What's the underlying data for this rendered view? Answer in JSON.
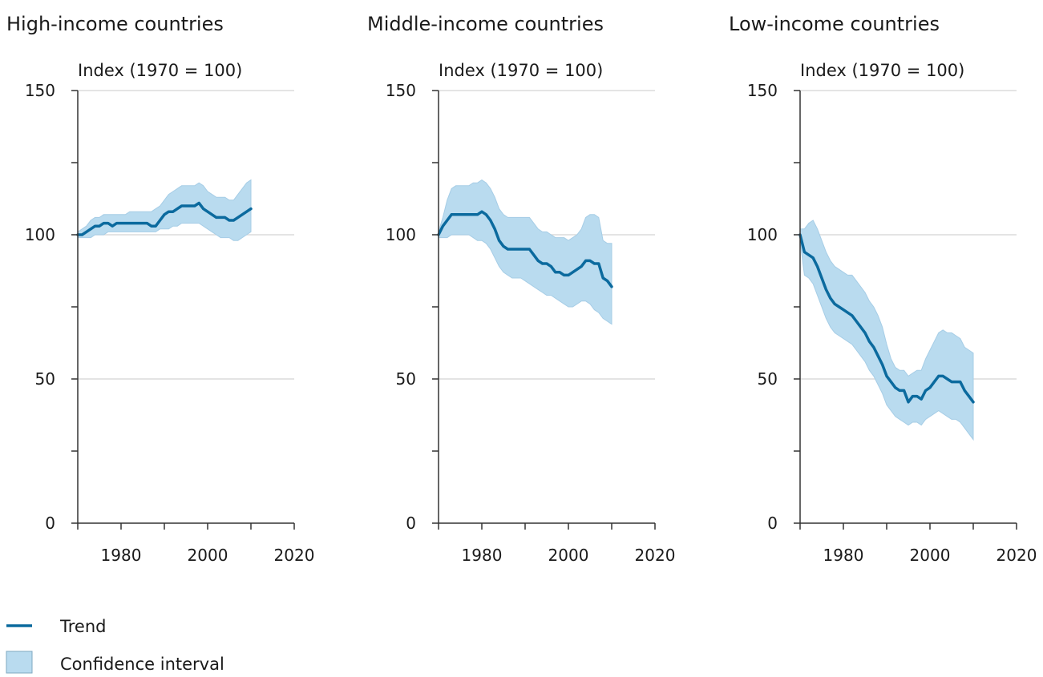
{
  "colors": {
    "trend": "#0b6a9e",
    "ci_fill": "#b9dbef",
    "ci_stroke": "#a6cde6"
  },
  "legend": {
    "trend_label": "Trend",
    "ci_label": "Confidence interval"
  },
  "chart_data": [
    {
      "type": "line",
      "title": "High-income countries",
      "ylabel": "Index (1970 = 100)",
      "xlim": [
        1970,
        2020
      ],
      "ylim": [
        0,
        150
      ],
      "xticks": [
        1980,
        2000,
        2020
      ],
      "yticks": [
        0,
        50,
        100,
        150
      ],
      "grid": "horizontal",
      "series": [
        {
          "name": "Trend",
          "x": [
            1970,
            1971,
            1972,
            1973,
            1974,
            1975,
            1976,
            1977,
            1978,
            1979,
            1980,
            1981,
            1982,
            1983,
            1984,
            1985,
            1986,
            1987,
            1988,
            1989,
            1990,
            1991,
            1992,
            1993,
            1994,
            1995,
            1996,
            1997,
            1998,
            1999,
            2000,
            2001,
            2002,
            2003,
            2004,
            2005,
            2006,
            2007,
            2008,
            2009,
            2010
          ],
          "y": [
            100,
            100,
            101,
            102,
            103,
            103,
            104,
            104,
            103,
            104,
            104,
            104,
            104,
            104,
            104,
            104,
            104,
            103,
            103,
            105,
            107,
            108,
            108,
            109,
            110,
            110,
            110,
            110,
            111,
            109,
            108,
            107,
            106,
            106,
            106,
            105,
            105,
            106,
            107,
            108,
            109
          ]
        },
        {
          "name": "Confidence interval",
          "x": [
            1970,
            1971,
            1972,
            1973,
            1974,
            1975,
            1976,
            1977,
            1978,
            1979,
            1980,
            1981,
            1982,
            1983,
            1984,
            1985,
            1986,
            1987,
            1988,
            1989,
            1990,
            1991,
            1992,
            1993,
            1994,
            1995,
            1996,
            1997,
            1998,
            1999,
            2000,
            2001,
            2002,
            2003,
            2004,
            2005,
            2006,
            2007,
            2008,
            2009,
            2010
          ],
          "lower": [
            99,
            99,
            99,
            99,
            100,
            100,
            100,
            101,
            101,
            101,
            101,
            101,
            101,
            101,
            101,
            101,
            101,
            101,
            101,
            102,
            102,
            102,
            103,
            103,
            104,
            104,
            104,
            104,
            104,
            103,
            102,
            101,
            100,
            99,
            99,
            99,
            98,
            98,
            99,
            100,
            101
          ],
          "upper": [
            101,
            102,
            103,
            105,
            106,
            106,
            107,
            107,
            107,
            107,
            107,
            107,
            108,
            108,
            108,
            108,
            108,
            108,
            109,
            110,
            112,
            114,
            115,
            116,
            117,
            117,
            117,
            117,
            118,
            117,
            115,
            114,
            113,
            113,
            113,
            112,
            112,
            114,
            116,
            118,
            119
          ]
        }
      ]
    },
    {
      "type": "line",
      "title": "Middle-income countries",
      "ylabel": "Index (1970 = 100)",
      "xlim": [
        1970,
        2020
      ],
      "ylim": [
        0,
        150
      ],
      "xticks": [
        1980,
        2000,
        2020
      ],
      "yticks": [
        0,
        50,
        100,
        150
      ],
      "grid": "horizontal",
      "series": [
        {
          "name": "Trend",
          "x": [
            1970,
            1971,
            1972,
            1973,
            1974,
            1975,
            1976,
            1977,
            1978,
            1979,
            1980,
            1981,
            1982,
            1983,
            1984,
            1985,
            1986,
            1987,
            1988,
            1989,
            1990,
            1991,
            1992,
            1993,
            1994,
            1995,
            1996,
            1997,
            1998,
            1999,
            2000,
            2001,
            2002,
            2003,
            2004,
            2005,
            2006,
            2007,
            2008,
            2009,
            2010
          ],
          "y": [
            100,
            103,
            105,
            107,
            107,
            107,
            107,
            107,
            107,
            107,
            108,
            107,
            105,
            102,
            98,
            96,
            95,
            95,
            95,
            95,
            95,
            95,
            93,
            91,
            90,
            90,
            89,
            87,
            87,
            86,
            86,
            87,
            88,
            89,
            91,
            91,
            90,
            90,
            85,
            84,
            82
          ]
        },
        {
          "name": "Confidence interval",
          "x": [
            1970,
            1971,
            1972,
            1973,
            1974,
            1975,
            1976,
            1977,
            1978,
            1979,
            1980,
            1981,
            1982,
            1983,
            1984,
            1985,
            1986,
            1987,
            1988,
            1989,
            1990,
            1991,
            1992,
            1993,
            1994,
            1995,
            1996,
            1997,
            1998,
            1999,
            2000,
            2001,
            2002,
            2003,
            2004,
            2005,
            2006,
            2007,
            2008,
            2009,
            2010
          ],
          "lower": [
            99,
            99,
            99,
            100,
            100,
            100,
            100,
            100,
            99,
            98,
            98,
            97,
            95,
            92,
            89,
            87,
            86,
            85,
            85,
            85,
            84,
            83,
            82,
            81,
            80,
            79,
            79,
            78,
            77,
            76,
            75,
            75,
            76,
            77,
            77,
            76,
            74,
            73,
            71,
            70,
            69
          ],
          "upper": [
            101,
            106,
            112,
            116,
            117,
            117,
            117,
            117,
            118,
            118,
            119,
            118,
            116,
            113,
            109,
            107,
            106,
            106,
            106,
            106,
            106,
            106,
            104,
            102,
            101,
            101,
            100,
            99,
            99,
            99,
            98,
            99,
            100,
            102,
            106,
            107,
            107,
            106,
            98,
            97,
            97
          ]
        }
      ]
    },
    {
      "type": "line",
      "title": "Low-income countries",
      "ylabel": "Index (1970 = 100)",
      "xlim": [
        1970,
        2020
      ],
      "ylim": [
        0,
        150
      ],
      "xticks": [
        1980,
        2000,
        2020
      ],
      "yticks": [
        0,
        50,
        100,
        150
      ],
      "grid": "horizontal",
      "series": [
        {
          "name": "Trend",
          "x": [
            1970,
            1971,
            1972,
            1973,
            1974,
            1975,
            1976,
            1977,
            1978,
            1979,
            1980,
            1981,
            1982,
            1983,
            1984,
            1985,
            1986,
            1987,
            1988,
            1989,
            1990,
            1991,
            1992,
            1993,
            1994,
            1995,
            1996,
            1997,
            1998,
            1999,
            2000,
            2001,
            2002,
            2003,
            2004,
            2005,
            2006,
            2007,
            2008,
            2009,
            2010
          ],
          "y": [
            100,
            94,
            93,
            92,
            89,
            85,
            81,
            78,
            76,
            75,
            74,
            73,
            72,
            70,
            68,
            66,
            63,
            61,
            58,
            55,
            51,
            49,
            47,
            46,
            46,
            42,
            44,
            44,
            43,
            46,
            47,
            49,
            51,
            51,
            50,
            49,
            49,
            49,
            46,
            44,
            42
          ]
        },
        {
          "name": "Confidence interval",
          "x": [
            1970,
            1971,
            1972,
            1973,
            1974,
            1975,
            1976,
            1977,
            1978,
            1979,
            1980,
            1981,
            1982,
            1983,
            1984,
            1985,
            1986,
            1987,
            1988,
            1989,
            1990,
            1991,
            1992,
            1993,
            1994,
            1995,
            1996,
            1997,
            1998,
            1999,
            2000,
            2001,
            2002,
            2003,
            2004,
            2005,
            2006,
            2007,
            2008,
            2009,
            2010
          ],
          "lower": [
            98,
            86,
            85,
            83,
            79,
            75,
            71,
            68,
            66,
            65,
            64,
            63,
            62,
            60,
            58,
            56,
            53,
            51,
            48,
            45,
            41,
            39,
            37,
            36,
            35,
            34,
            35,
            35,
            34,
            36,
            37,
            38,
            39,
            38,
            37,
            36,
            36,
            35,
            33,
            31,
            29
          ],
          "upper": [
            102,
            102,
            104,
            105,
            102,
            98,
            94,
            91,
            89,
            88,
            87,
            86,
            86,
            84,
            82,
            80,
            77,
            75,
            72,
            68,
            62,
            57,
            54,
            53,
            53,
            51,
            52,
            53,
            53,
            57,
            60,
            63,
            66,
            67,
            66,
            66,
            65,
            64,
            61,
            60,
            59
          ]
        }
      ]
    }
  ]
}
